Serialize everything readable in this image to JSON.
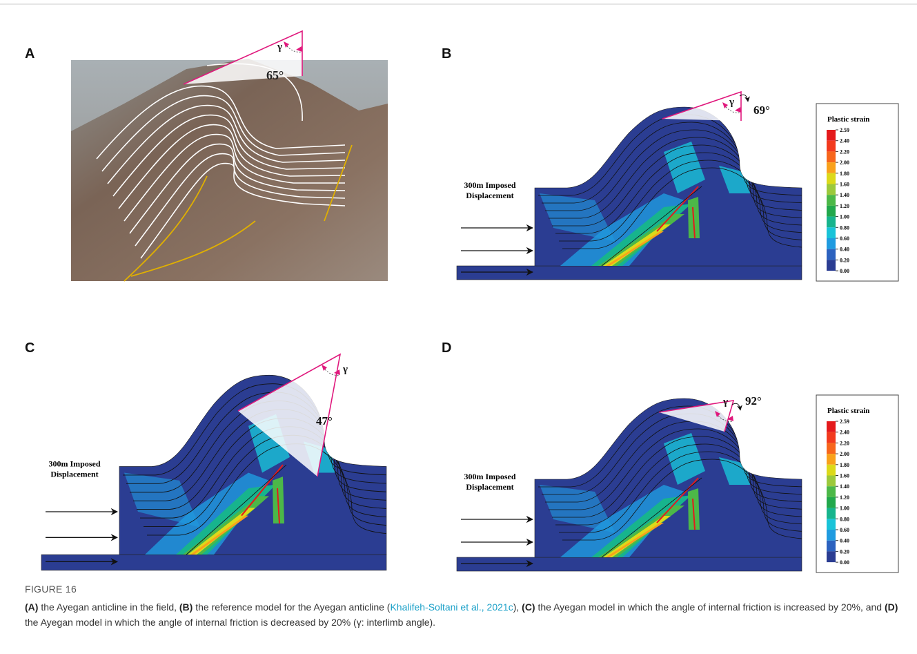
{
  "figure": {
    "panels": [
      {
        "letter": "A",
        "angle": "65°",
        "gamma": "γ"
      },
      {
        "letter": "B",
        "angle": "69°",
        "gamma": "γ",
        "displacement": [
          "300m Imposed",
          "Displacement"
        ],
        "legend": {
          "title": "Plastic strain",
          "levels": [
            "2.59",
            "2.40",
            "2.20",
            "2.00",
            "1.80",
            "1.60",
            "1.40",
            "1.20",
            "1.00",
            "0.80",
            "0.60",
            "0.40",
            "0.20",
            "0.00"
          ]
        }
      },
      {
        "letter": "C",
        "angle": "47°",
        "gamma": "γ",
        "displacement": [
          "300m Imposed",
          "Displacement"
        ]
      },
      {
        "letter": "D",
        "angle": "92°",
        "gamma": "γ",
        "displacement": [
          "300m Imposed",
          "Displacement"
        ],
        "legend": {
          "title": "Plastic strain",
          "levels": [
            "2.59",
            "2.40",
            "2.20",
            "2.00",
            "1.80",
            "1.60",
            "1.40",
            "1.20",
            "1.00",
            "0.80",
            "0.60",
            "0.40",
            "0.20",
            "0.00"
          ]
        }
      }
    ],
    "label": "FIGURE 16",
    "caption": [
      {
        "text": "(A)",
        "bold": true
      },
      {
        "text": " the Ayegan anticline in the field, "
      },
      {
        "text": "(B)",
        "bold": true
      },
      {
        "text": " the reference model for the Ayegan anticline ("
      },
      {
        "text": "Khalifeh-Soltani et al., 2021c",
        "link": true
      },
      {
        "text": "), "
      },
      {
        "text": "(C)",
        "bold": true
      },
      {
        "text": " the Ayegan model in which the angle of internal friction is increased by 20%, and "
      },
      {
        "text": "(D)",
        "bold": true
      },
      {
        "text": " the Ayegan model in which the angle of internal friction is decreased by 20% (γ: interlimb angle)."
      }
    ]
  }
}
